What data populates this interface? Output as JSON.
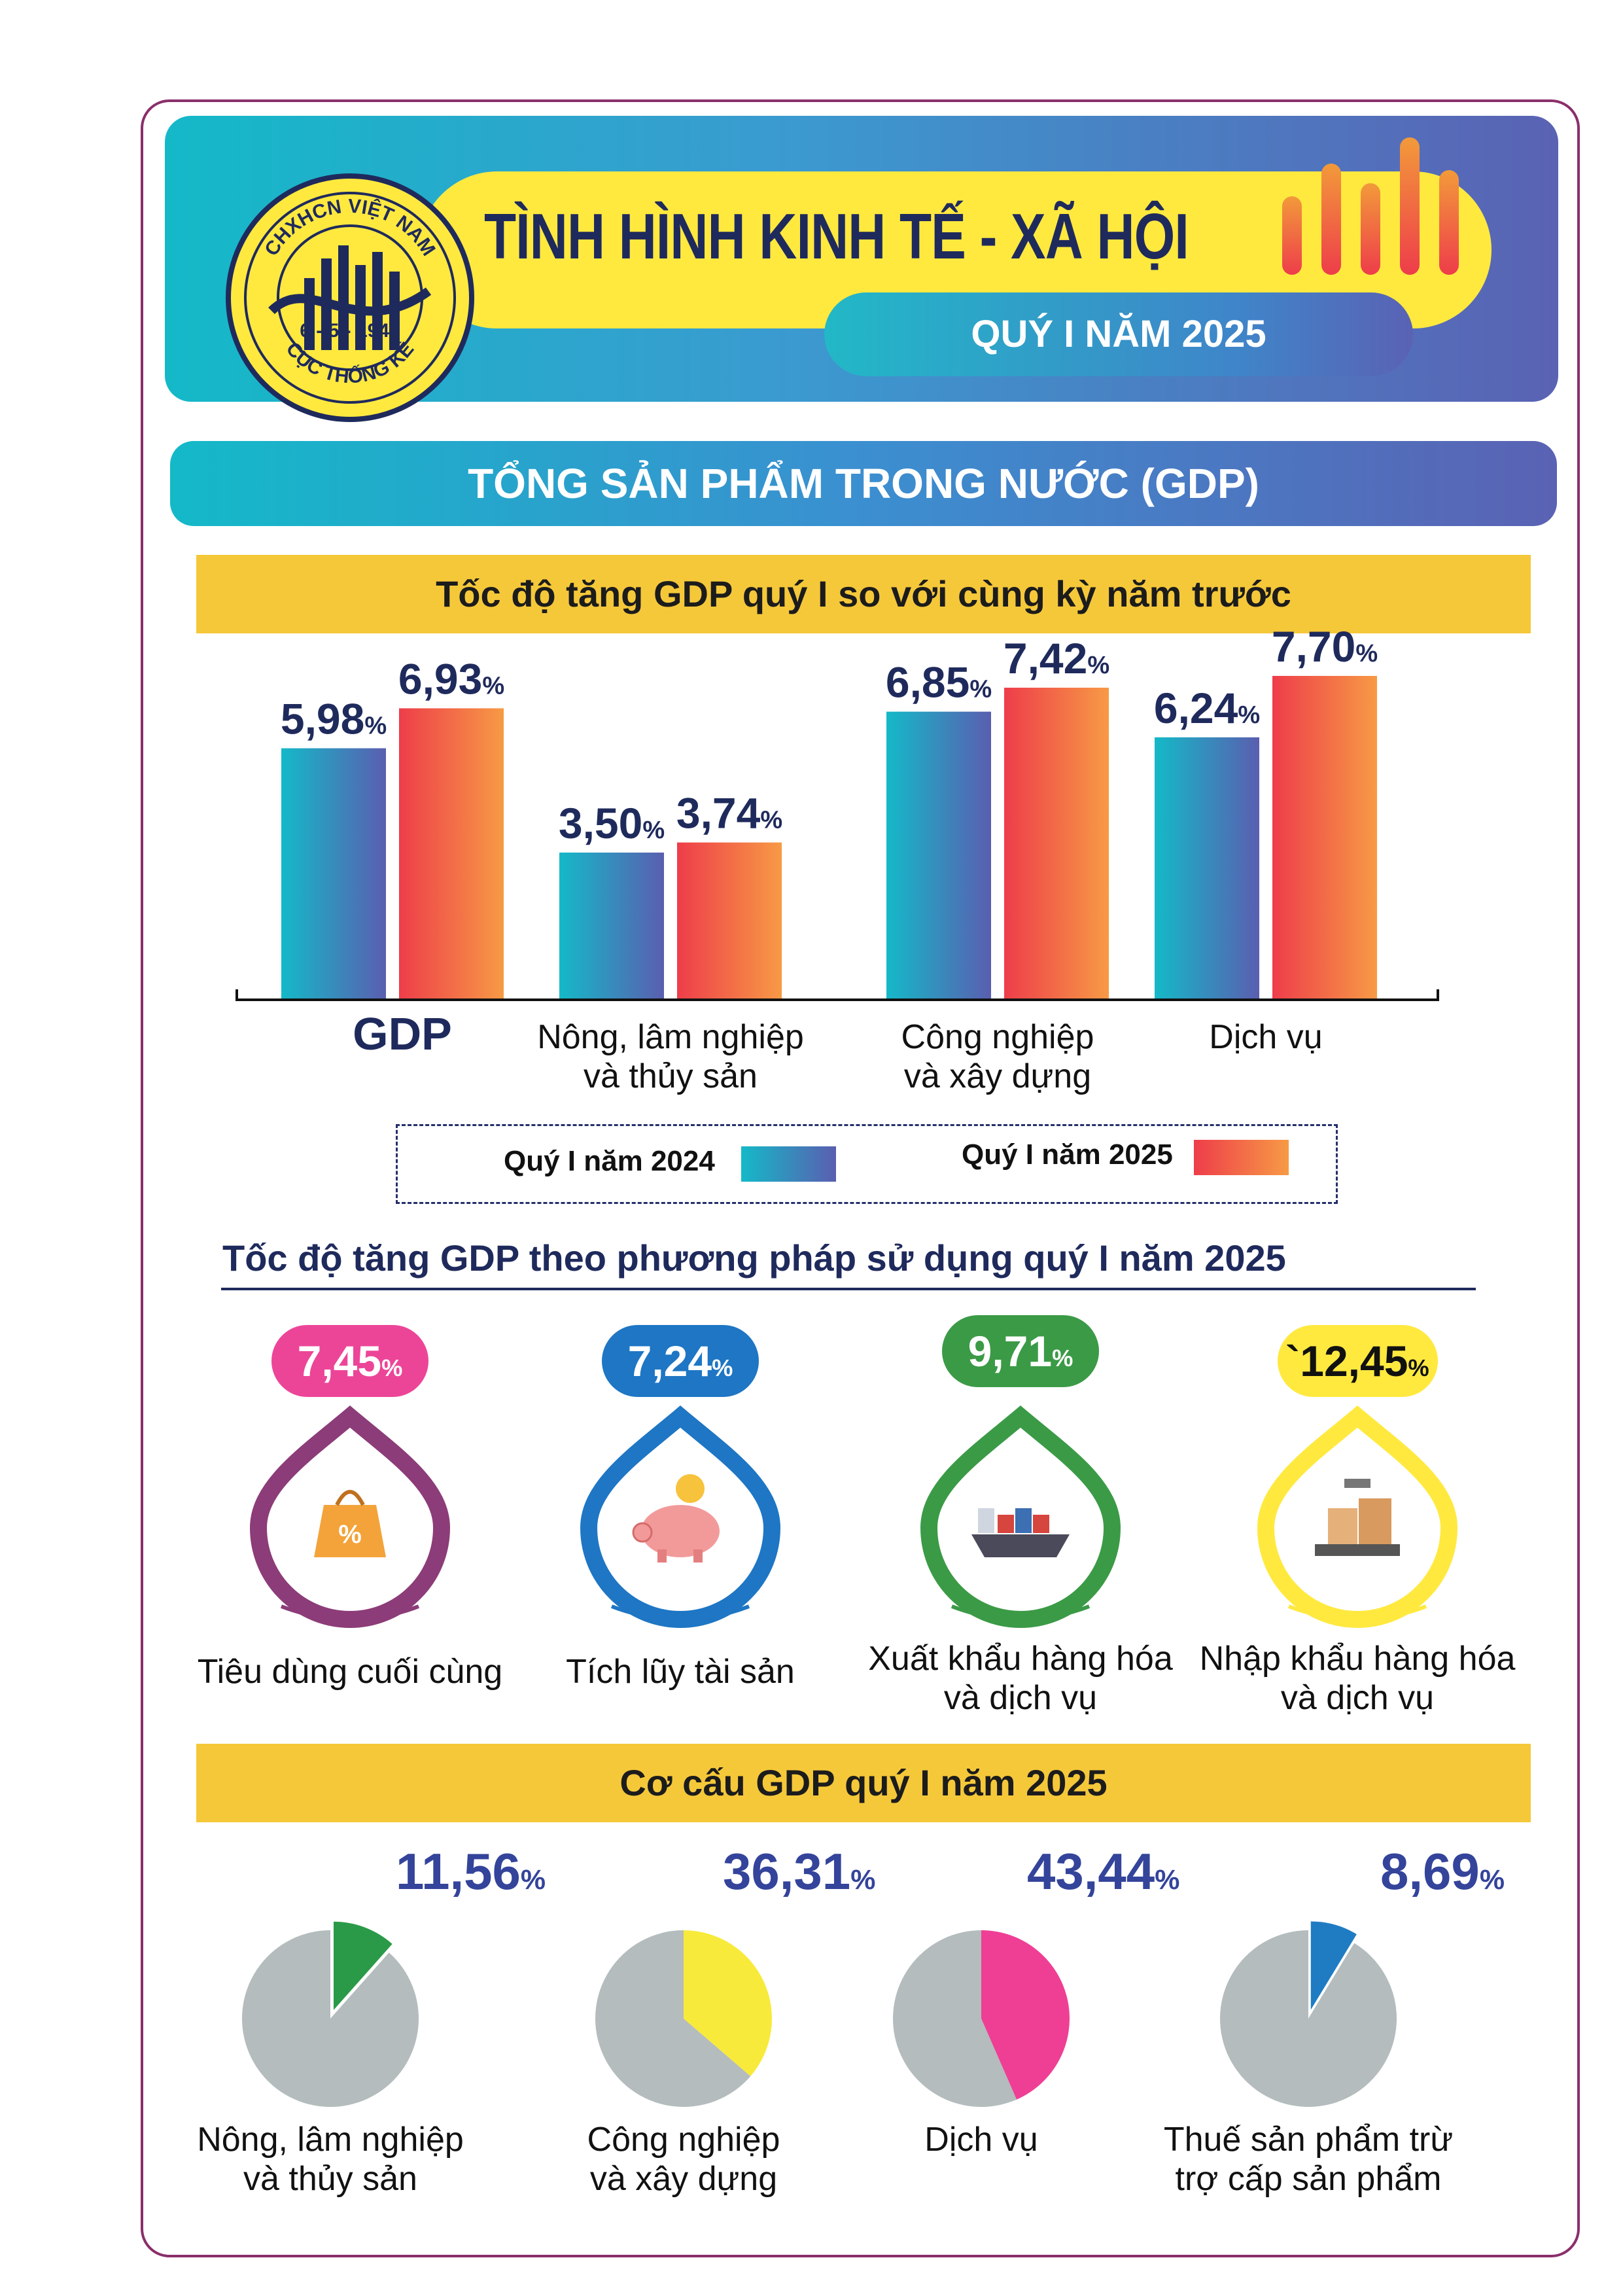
{
  "header": {
    "title": "TÌNH HÌNH KINH TẾ - XÃ HỘI",
    "subtitle": "QUÝ I NĂM 2025",
    "logo_text_top": "CHXHCN VIỆT NAM",
    "logo_text_date": "6 - 5 - 1946",
    "logo_text_bottom": "CỤC THỐNG KÊ"
  },
  "section_title": "TỔNG SẢN PHẨM TRONG NƯỚC (GDP)",
  "growth_chart": {
    "title": "Tốc độ tăng GDP quý I so với cùng kỳ năm trước",
    "legend": [
      "Quý I năm 2024",
      "Quý I năm 2025"
    ]
  },
  "usage": {
    "title": "Tốc độ tăng GDP theo phương pháp sử dụng quý I năm 2025",
    "items": [
      {
        "value": "7,45",
        "label_1": "Tiêu dùng cuối cùng",
        "label_2": "",
        "icon": "shopping-bag-icon",
        "color": "#ec4598",
        "ring": "#8c3c78"
      },
      {
        "value": "7,24",
        "label_1": "Tích lũy tài sản",
        "label_2": "",
        "icon": "piggy-bank-icon",
        "color": "#1e76c4",
        "ring": "#1e76c4"
      },
      {
        "value": "9,71",
        "label_1": "Xuất khẩu hàng hóa",
        "label_2": "và dịch vụ",
        "icon": "cargo-ship-icon",
        "color": "#3b9a46",
        "ring": "#3b9a46"
      },
      {
        "value": "`12,45",
        "label_1": "Nhập khẩu hàng hóa",
        "label_2": "và dịch vụ",
        "icon": "scale-boxes-icon",
        "color": "#ffe93f",
        "ring": "#ffe93f"
      }
    ]
  },
  "structure": {
    "title": "Cơ cấu GDP quý I năm 2025"
  },
  "colors": {
    "accent_teal": "#14b9c8",
    "accent_purple": "#5a62b4",
    "accent_orange": "#f4663c",
    "yellow": "#f5c83a"
  },
  "chart_data": [
    {
      "type": "bar",
      "title": "Tốc độ tăng GDP quý I so với cùng kỳ năm trước",
      "categories": [
        "GDP",
        "Nông, lâm nghiệp\nvà thủy sản",
        "Công nghiệp\nvà xây dựng",
        "Dịch vụ"
      ],
      "series": [
        {
          "name": "Quý I năm 2024",
          "values": [
            5.98,
            3.5,
            6.85,
            6.24
          ],
          "labels": [
            "5,98",
            "3,50",
            "6,85",
            "6,24"
          ]
        },
        {
          "name": "Quý I năm 2025",
          "values": [
            6.93,
            3.74,
            7.42,
            7.7
          ],
          "labels": [
            "6,93",
            "3,74",
            "7,42",
            "7,70"
          ]
        }
      ],
      "unit": "%",
      "ylim": [
        0,
        8.4
      ]
    },
    {
      "type": "pie",
      "title": "Cơ cấu GDP quý I năm 2025",
      "slices": [
        {
          "label": "Nông, lâm nghiệp\nvà thủy sản",
          "value": 11.56,
          "text": "11,56",
          "color": "#2a9a48"
        },
        {
          "label": "Công nghiệp\nvà xây dựng",
          "value": 36.31,
          "text": "36,31",
          "color": "#f8ea3a"
        },
        {
          "label": "Dịch vụ",
          "value": 43.44,
          "text": "43,44",
          "color": "#ee3f95"
        },
        {
          "label": "Thuế sản phẩm trừ\ntrợ cấp sản phẩm",
          "value": 8.69,
          "text": "8,69",
          "color": "#1f7cc3"
        }
      ],
      "unit": "%"
    }
  ]
}
